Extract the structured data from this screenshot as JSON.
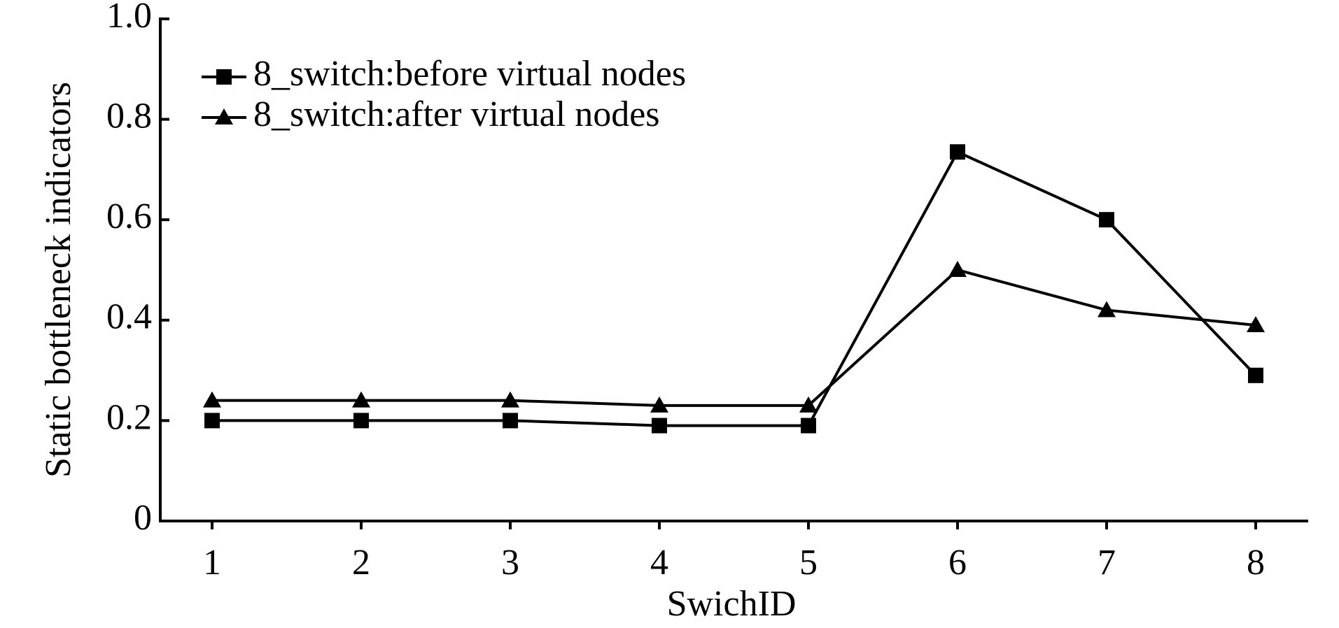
{
  "chart_data": {
    "type": "line",
    "x_label": "SwichID",
    "y_label": "Static bottleneck indicators",
    "categories": [
      "1",
      "2",
      "3",
      "4",
      "5",
      "6",
      "7",
      "8"
    ],
    "series": [
      {
        "name": "8_switch:before virtual nodes",
        "color": "#000000",
        "marker": "square",
        "values": [
          0.2,
          0.2,
          0.2,
          0.19,
          0.19,
          0.735,
          0.6,
          0.29
        ]
      },
      {
        "name": "8_switch:after virtual nodes",
        "color": "#000000",
        "marker": "triangle",
        "values": [
          0.24,
          0.24,
          0.24,
          0.23,
          0.23,
          0.5,
          0.42,
          0.39
        ]
      }
    ],
    "ylim": [
      0,
      1
    ],
    "yticks": [
      0,
      0.2,
      0.4,
      0.6,
      0.8,
      {
        "value": 1,
        "label": "1.0"
      }
    ],
    "legend": "upper-left",
    "grid": false
  }
}
